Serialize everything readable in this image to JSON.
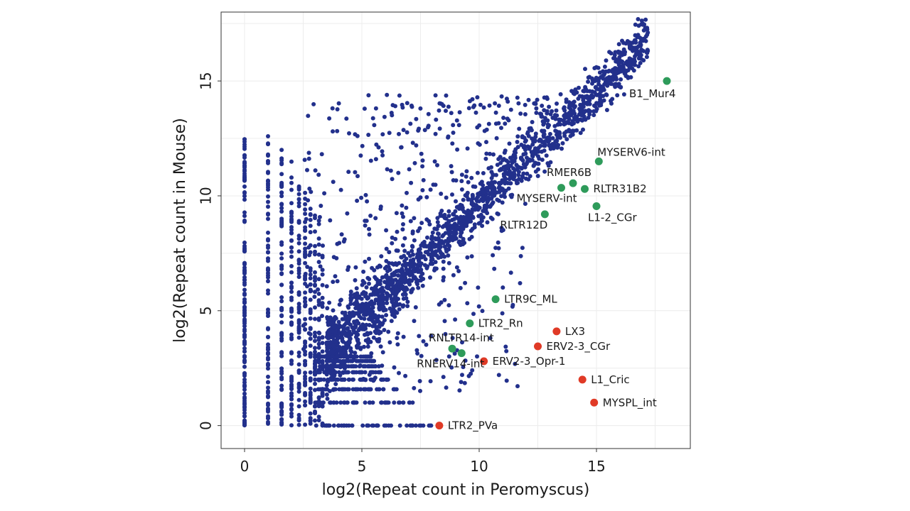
{
  "chart_data": {
    "type": "scatter",
    "xlabel": "log2(Repeat count in Peromyscus)",
    "ylabel": "log2(Repeat count in Mouse)",
    "xlim": [
      -1,
      19
    ],
    "ylim": [
      -1,
      18
    ],
    "x_ticks": [
      0,
      5,
      10,
      15
    ],
    "y_ticks": [
      0,
      5,
      10,
      15
    ],
    "grid": true,
    "colors": {
      "background_points": "#22308c",
      "up": "#2e9b5a",
      "down": "#e03a26"
    },
    "labeled_points": [
      {
        "label": "B1_Mur4",
        "x": 18.0,
        "y": 15.0,
        "group": "up",
        "anchor": "below"
      },
      {
        "label": "MYSERV6-int",
        "x": 15.1,
        "y": 11.5,
        "group": "up",
        "anchor": "above-right"
      },
      {
        "label": "RMER6B",
        "x": 14.0,
        "y": 10.55,
        "group": "up",
        "anchor": "above-left"
      },
      {
        "label": "RLTR31B2",
        "x": 14.5,
        "y": 10.3,
        "group": "up",
        "anchor": "right"
      },
      {
        "label": "MYSERV-int",
        "x": 13.5,
        "y": 10.35,
        "group": "up",
        "anchor": "below-left"
      },
      {
        "label": "L1-2_CGr",
        "x": 15.0,
        "y": 9.55,
        "group": "up",
        "anchor": "below-right"
      },
      {
        "label": "RLTR12D",
        "x": 12.8,
        "y": 9.2,
        "group": "up",
        "anchor": "below-left"
      },
      {
        "label": "LTR9C_ML",
        "x": 10.7,
        "y": 5.5,
        "group": "up",
        "anchor": "right"
      },
      {
        "label": "LTR2_Rn",
        "x": 9.6,
        "y": 4.45,
        "group": "up",
        "anchor": "right"
      },
      {
        "label": "RNLTR14-int",
        "x": 8.85,
        "y": 3.35,
        "group": "up",
        "anchor": "above"
      },
      {
        "label": "RNERV14-int",
        "x": 9.25,
        "y": 3.15,
        "group": "up",
        "anchor": "below-left"
      },
      {
        "label": "LX3",
        "x": 13.3,
        "y": 4.1,
        "group": "down",
        "anchor": "right"
      },
      {
        "label": "ERV2-3_CGr",
        "x": 12.5,
        "y": 3.45,
        "group": "down",
        "anchor": "right"
      },
      {
        "label": "ERV2-3_Opr-1",
        "x": 10.2,
        "y": 2.8,
        "group": "down",
        "anchor": "right"
      },
      {
        "label": "L1_Cric",
        "x": 14.4,
        "y": 2.0,
        "group": "down",
        "anchor": "right"
      },
      {
        "label": "MYSPL_int",
        "x": 14.9,
        "y": 1.0,
        "group": "down",
        "anchor": "right"
      },
      {
        "label": "LTR2_PVa",
        "x": 8.3,
        "y": 0.0,
        "group": "down",
        "anchor": "right"
      }
    ],
    "background_cloud": {
      "description_free": true,
      "diagonal_band": {
        "x_min": 3.5,
        "x_max": 17.2,
        "spread": 0.55
      },
      "column_x_values": [
        0,
        1,
        1.58,
        2,
        2.32,
        2.58,
        2.81,
        3,
        3.17,
        3.32
      ],
      "row_y_values": [
        0,
        1,
        1.58,
        2,
        2.32,
        2.58,
        2.81,
        3
      ]
    }
  }
}
